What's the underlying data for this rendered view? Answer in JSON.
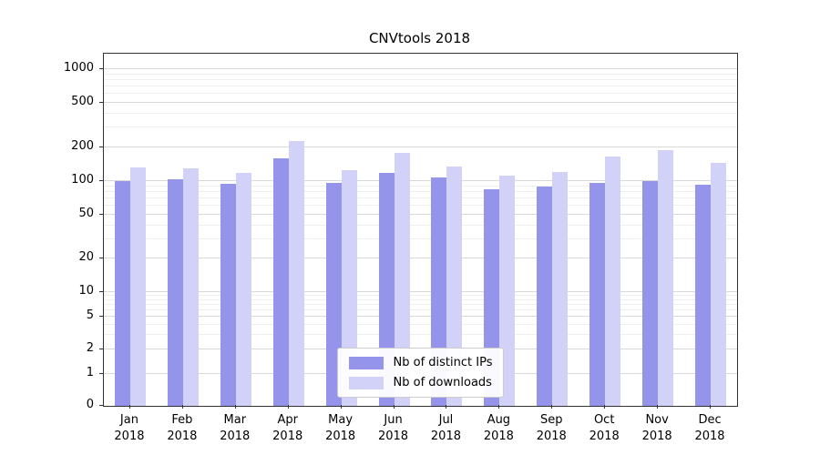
{
  "chart_data": {
    "type": "bar",
    "title": "CNVtools 2018",
    "categories": [
      "Jan",
      "Feb",
      "Mar",
      "Apr",
      "May",
      "Jun",
      "Jul",
      "Aug",
      "Sep",
      "Oct",
      "Nov",
      "Dec"
    ],
    "year": "2018",
    "series": [
      {
        "name": "Nb of distinct IPs",
        "color": "#9494eb",
        "values": [
          100,
          104,
          94,
          160,
          96,
          118,
          108,
          85,
          89,
          96,
          100,
          92
        ]
      },
      {
        "name": "Nb of downloads",
        "color": "#d2d2f8",
        "values": [
          133,
          130,
          118,
          230,
          125,
          180,
          135,
          112,
          120,
          165,
          190,
          145
        ]
      }
    ],
    "yticks": [
      0,
      1,
      2,
      5,
      10,
      20,
      50,
      100,
      200,
      500,
      1000
    ],
    "scale": "symlog",
    "ylim": [
      0,
      1000
    ],
    "xlabel": "",
    "ylabel": "",
    "grid": true,
    "legend_position": "lower center"
  }
}
